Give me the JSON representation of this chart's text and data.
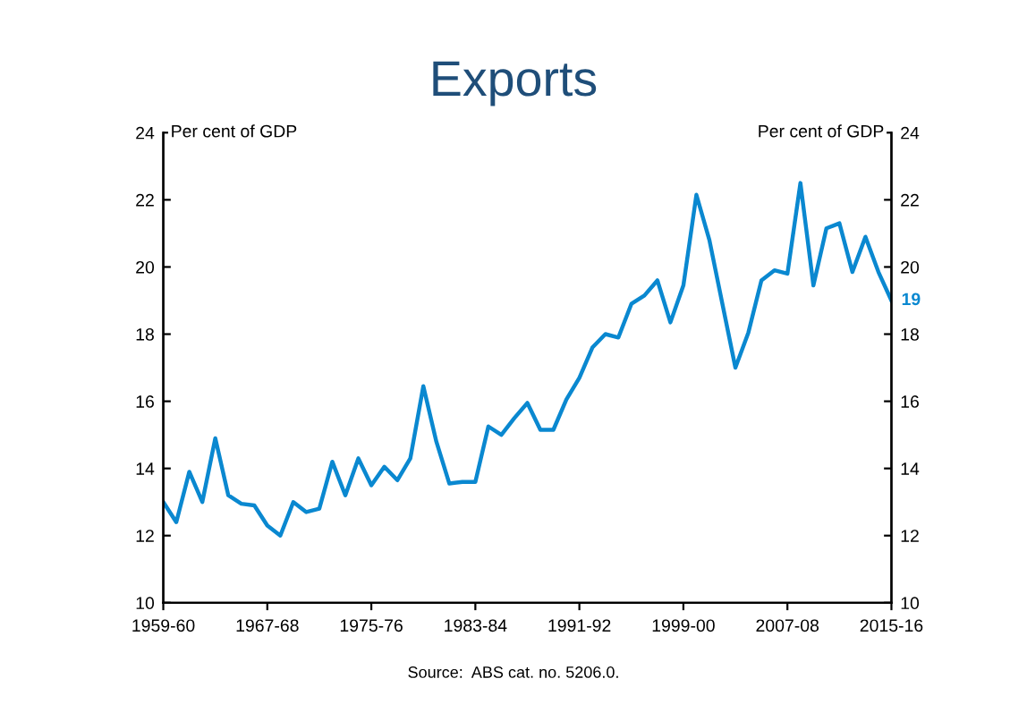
{
  "chart_data": {
    "type": "line",
    "title": "Exports",
    "ylabel": "Per cent of GDP",
    "y2label": "Per cent of GDP",
    "categories": [
      "1959-60",
      null,
      null,
      null,
      null,
      null,
      null,
      null,
      "1967-68",
      null,
      null,
      null,
      null,
      null,
      null,
      null,
      "1975-76",
      null,
      null,
      null,
      null,
      null,
      null,
      null,
      "1983-84",
      null,
      null,
      null,
      null,
      null,
      null,
      null,
      "1991-92",
      null,
      null,
      null,
      null,
      null,
      null,
      null,
      "1999-00",
      null,
      null,
      null,
      null,
      null,
      null,
      null,
      "2007-08",
      null,
      null,
      null,
      null,
      null,
      null,
      null,
      "2015-16"
    ],
    "series": [
      {
        "color": "#0a88d0",
        "values": [
          13.0,
          12.4,
          13.9,
          13.0,
          14.9,
          13.2,
          12.95,
          12.9,
          12.3,
          12.0,
          13.0,
          12.7,
          12.8,
          14.2,
          13.2,
          14.3,
          13.5,
          14.05,
          13.65,
          14.3,
          16.45,
          14.8,
          13.55,
          13.6,
          13.6,
          15.25,
          15.0,
          15.5,
          15.95,
          15.15,
          15.15,
          16.05,
          16.7,
          17.6,
          18.0,
          17.9,
          18.9,
          19.15,
          19.6,
          18.35,
          19.45,
          22.15,
          20.8,
          18.9,
          17.0,
          18.05,
          19.6,
          19.9,
          19.8,
          22.5,
          19.45,
          21.15,
          21.3,
          19.85,
          20.9,
          19.85,
          19.0
        ],
        "value_labels": [
          null,
          null,
          null,
          null,
          null,
          null,
          null,
          null,
          null,
          null,
          null,
          null,
          null,
          null,
          null,
          null,
          null,
          null,
          null,
          null,
          null,
          null,
          null,
          null,
          null,
          null,
          null,
          null,
          null,
          null,
          null,
          null,
          null,
          null,
          null,
          null,
          null,
          null,
          null,
          null,
          null,
          null,
          null,
          null,
          null,
          null,
          null,
          null,
          null,
          null,
          null,
          null,
          null,
          null,
          null,
          null,
          "19"
        ]
      }
    ],
    "ylim": [
      10,
      24
    ],
    "yticks": [
      10,
      12,
      14,
      16,
      18,
      20,
      22,
      24
    ],
    "y2lim": [
      10,
      24
    ],
    "y2ticks": [
      10,
      12,
      14,
      16,
      18,
      20,
      22,
      24
    ],
    "grid": false,
    "legend": false,
    "marker": "none",
    "line_style": "solid",
    "annotations": [
      "Source:  ABS cat. no. 5206.0."
    ]
  }
}
